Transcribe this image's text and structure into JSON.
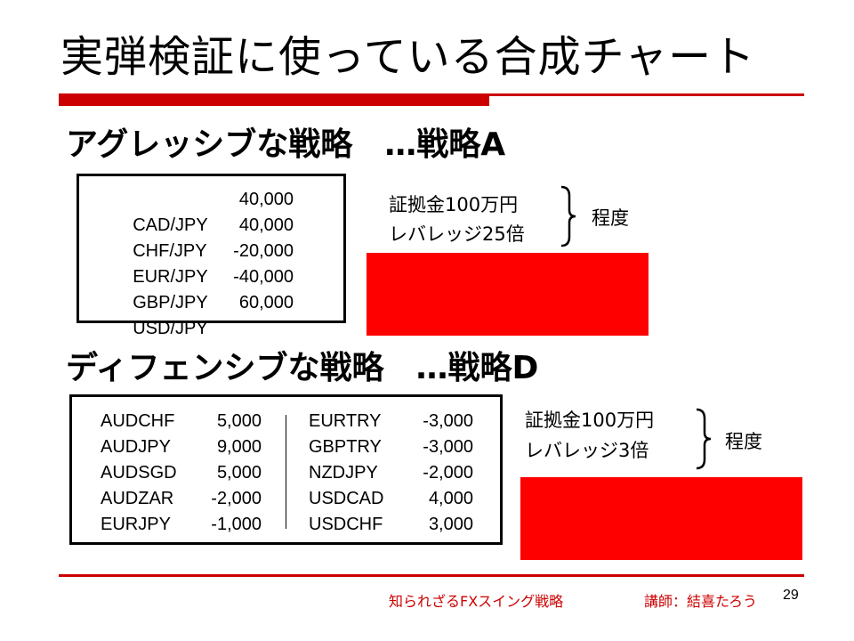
{
  "slide": {
    "title": "実弾検証に使っている合成チャート",
    "page_number": "29"
  },
  "strategy_a": {
    "heading": "アグレッシブな戦略　…戦略A",
    "pairs": [
      {
        "symbol": "CAD/JPY",
        "amount": "40,000"
      },
      {
        "symbol": "CHF/JPY",
        "amount": "40,000"
      },
      {
        "symbol": "EUR/JPY",
        "amount": "-20,000"
      },
      {
        "symbol": "GBP/JPY",
        "amount": "-40,000"
      },
      {
        "symbol": "USD/JPY",
        "amount": "60,000"
      }
    ],
    "note_line1": "証拠金100万円",
    "note_line2": "レバレッジ25倍",
    "note_suffix": "程度"
  },
  "strategy_d": {
    "heading": "ディフェンシブな戦略　…戦略D",
    "pairs_left": [
      {
        "symbol": "AUDCHF",
        "amount": "5,000"
      },
      {
        "symbol": "AUDJPY",
        "amount": "9,000"
      },
      {
        "symbol": "AUDSGD",
        "amount": "5,000"
      },
      {
        "symbol": "AUDZAR",
        "amount": "-2,000"
      },
      {
        "symbol": "EURJPY",
        "amount": "-1,000"
      }
    ],
    "pairs_right": [
      {
        "symbol": "EURTRY",
        "amount": "-3,000"
      },
      {
        "symbol": "GBPTRY",
        "amount": "-3,000"
      },
      {
        "symbol": "NZDJPY",
        "amount": "-2,000"
      },
      {
        "symbol": "USDCAD",
        "amount": "4,000"
      },
      {
        "symbol": "USDCHF",
        "amount": "3,000"
      }
    ],
    "note_line1": "証拠金100万円",
    "note_line2": "レバレッジ3倍",
    "note_suffix": "程度"
  },
  "footer": {
    "course": "知られざるFXスイング戦略",
    "instructor": "講師：結喜たろう"
  },
  "colors": {
    "accent_red": "#cc0000",
    "block_red": "#ff0000"
  }
}
